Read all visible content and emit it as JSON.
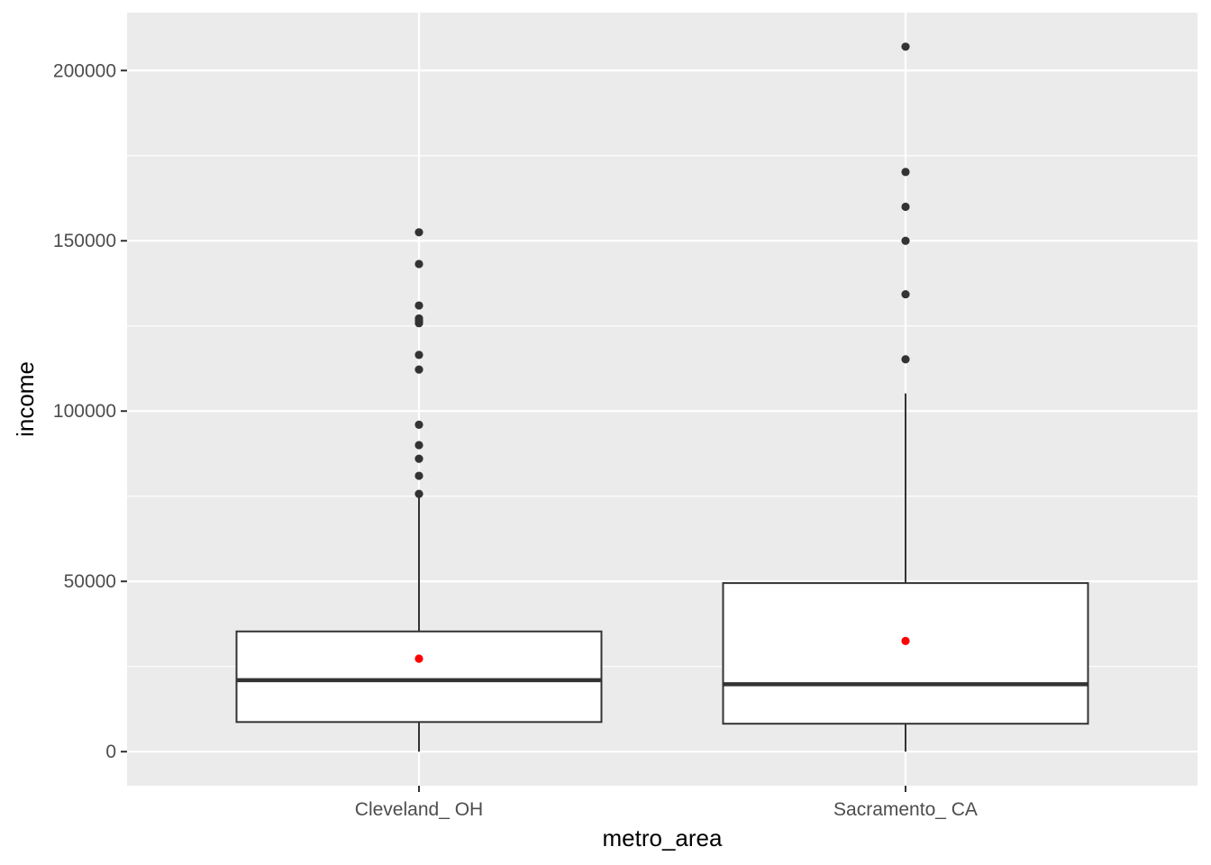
{
  "chart_data": {
    "type": "boxplot",
    "xlabel": "metro_area",
    "ylabel": "income",
    "categories": [
      "Cleveland_ OH",
      "Sacramento_ CA"
    ],
    "ylim": [
      -10000,
      217000
    ],
    "y_ticks": [
      0,
      50000,
      100000,
      150000,
      200000
    ],
    "y_tick_labels": [
      "0",
      "50000",
      "100000",
      "150000",
      "200000"
    ],
    "grid": true,
    "legend": "none",
    "boxes": [
      {
        "category": "Cleveland_ OH",
        "whisker_low": 0,
        "q1": 8700,
        "median": 21000,
        "q3": 35300,
        "whisker_high": 75700,
        "mean": 27300,
        "outliers": [
          75700,
          81000,
          86000,
          90000,
          96000,
          112200,
          116500,
          125800,
          126500,
          127200,
          131000,
          143200,
          152500
        ]
      },
      {
        "category": "Sacramento_ CA",
        "whisker_low": 0,
        "q1": 8200,
        "median": 19800,
        "q3": 49500,
        "whisker_high": 105200,
        "mean": 32500,
        "outliers": [
          115200,
          134300,
          150000,
          160000,
          170200,
          207000
        ]
      }
    ],
    "colors": {
      "panel": "#ebebeb",
      "grid": "#ffffff",
      "box_fill": "#ffffff",
      "box_line": "#333333",
      "outlier": "#333333",
      "mean_point": "#ff0000"
    }
  }
}
